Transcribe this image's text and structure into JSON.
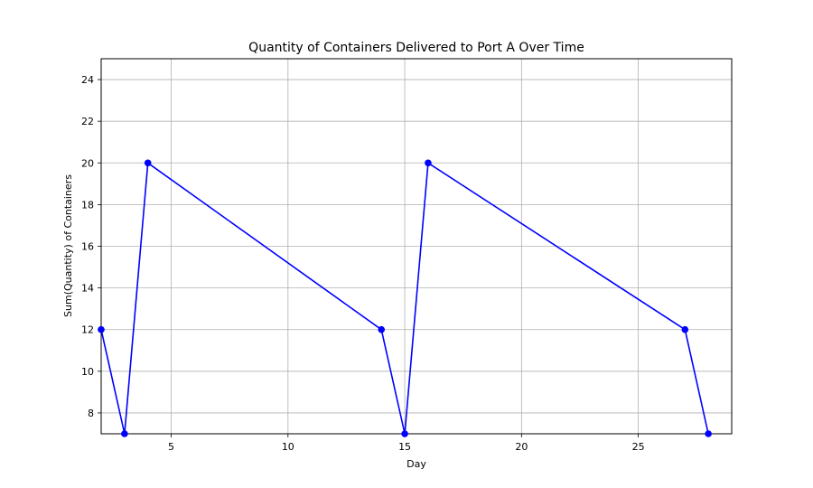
{
  "chart_data": {
    "type": "line",
    "title": "Quantity of Containers Delivered to Port A Over Time",
    "xlabel": "Day",
    "ylabel": "Sum(Quantity) of Containers",
    "xlim": [
      2,
      29
    ],
    "ylim": [
      7,
      25
    ],
    "x_ticks": [
      5,
      10,
      15,
      20,
      25
    ],
    "y_ticks": [
      8,
      10,
      12,
      14,
      16,
      18,
      20,
      22,
      24
    ],
    "grid": true,
    "series": [
      {
        "x": [
          2,
          3,
          4,
          14,
          15,
          16,
          27,
          28
        ],
        "values": [
          12,
          7,
          20,
          12,
          7,
          20,
          12,
          7
        ],
        "color": "#0000ff",
        "marker": "circle"
      }
    ]
  }
}
